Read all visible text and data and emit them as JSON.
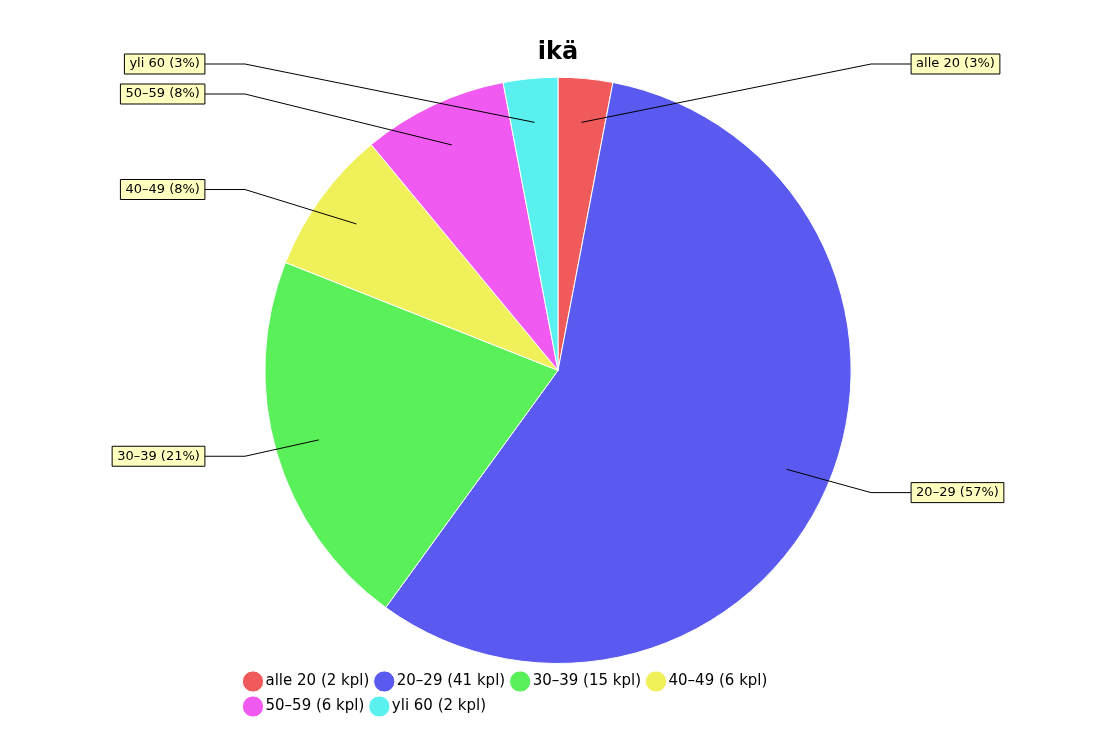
{
  "chart_data": {
    "type": "pie",
    "title": "ikä",
    "categories": [
      "alle 20 (2 kpl)",
      "20–29 (41 kpl)",
      "30–39 (15 kpl)",
      "40–49 (6 kpl)",
      "50–59 (6 kpl)",
      "yli 60 (2 kpl)"
    ],
    "values": [
      3,
      57,
      21,
      8,
      8,
      3
    ],
    "colors": [
      "#f05a5a",
      "#5a5af0",
      "#5af05a",
      "#f0f05a",
      "#f05af0",
      "#5af0f0"
    ],
    "value_labels": [
      "alle 20 (3%)",
      "20–29 (57%)",
      "30–39 (21%)",
      "40–49 (8%)",
      "50–59 (8%)",
      "yli 60 (3%)"
    ],
    "legend": "bottom"
  }
}
